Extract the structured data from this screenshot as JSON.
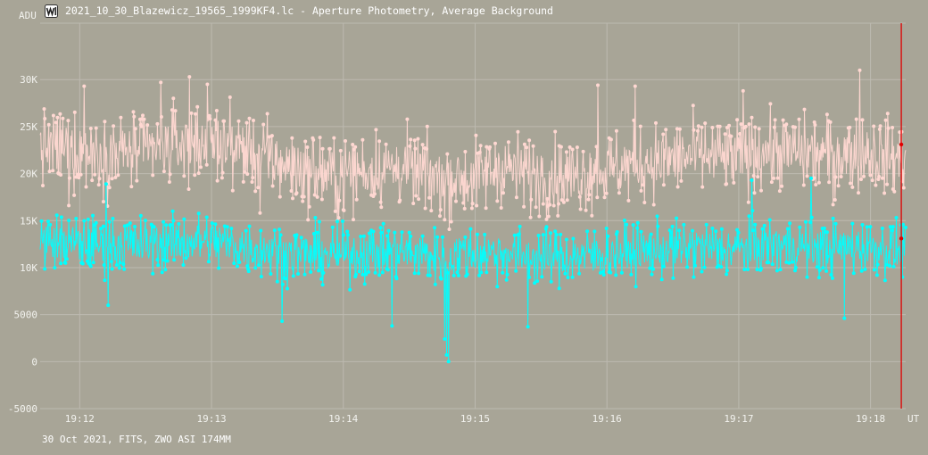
{
  "window": {
    "title": "2021_10_30_Blazewicz_19565_1999KF4.lc - Aperture Photometry, Average Background",
    "icon": "light-curve-app-icon"
  },
  "footer": {
    "caption": "30 Oct 2021, FITS, ZWO ASI 174MM"
  },
  "colors": {
    "background": "#a8a597",
    "grid": "#bdbab0",
    "text": "#f2f2ee",
    "cursor": "#e00000"
  },
  "chart_data": {
    "type": "line",
    "title": "",
    "ylabel": "ADU",
    "xlabel": "UT",
    "ylim": [
      -5000,
      36000
    ],
    "xlim": [
      "19:11:42",
      "19:18:16"
    ],
    "grid": true,
    "y_ticks": [
      {
        "value": -5000,
        "label": "-5000"
      },
      {
        "value": 0,
        "label": "0"
      },
      {
        "value": 5000,
        "label": "5000"
      },
      {
        "value": 10000,
        "label": "10K"
      },
      {
        "value": 15000,
        "label": "15K"
      },
      {
        "value": 20000,
        "label": "20K"
      },
      {
        "value": 25000,
        "label": "25K"
      },
      {
        "value": 30000,
        "label": "30K"
      }
    ],
    "x_ticks": [
      {
        "value": "19:12",
        "label": "19:12"
      },
      {
        "value": "19:13",
        "label": "19:13"
      },
      {
        "value": "19:14",
        "label": "19:14"
      },
      {
        "value": "19:15",
        "label": "19:15"
      },
      {
        "value": "19:16",
        "label": "19:16"
      },
      {
        "value": "19:17",
        "label": "19:17"
      },
      {
        "value": "19:18",
        "label": "19:18"
      }
    ],
    "cursor": {
      "x": "19:18:14",
      "values": [
        23100,
        13100
      ]
    },
    "series": [
      {
        "color": "#ffd8d2",
        "x": [
          "19:11:42",
          "19:11:57",
          "19:12:12",
          "19:12:27",
          "19:12:42",
          "19:12:57",
          "19:13:12",
          "19:13:27",
          "19:13:42",
          "19:13:57",
          "19:14:12",
          "19:14:27",
          "19:14:42",
          "19:14:57",
          "19:15:12",
          "19:15:27",
          "19:15:42",
          "19:15:57",
          "19:16:12",
          "19:16:27",
          "19:16:42",
          "19:16:57",
          "19:17:12",
          "19:17:27",
          "19:17:42",
          "19:17:57",
          "19:18:12",
          "19:18:16"
        ],
        "values": [
          22800,
          22600,
          22100,
          22400,
          23000,
          23600,
          22800,
          21500,
          20200,
          19900,
          20400,
          20600,
          19600,
          19300,
          20800,
          19800,
          19700,
          20300,
          21000,
          21500,
          22000,
          21600,
          22500,
          22300,
          22000,
          22400,
          21600,
          22100
        ],
        "spread": 2600,
        "peaks": [
          {
            "x": "19:12:02",
            "value": 29300
          },
          {
            "x": "19:12:37",
            "value": 29700
          },
          {
            "x": "19:12:50",
            "value": 30300
          },
          {
            "x": "19:12:58",
            "value": 29500
          },
          {
            "x": "19:15:56",
            "value": 29400
          },
          {
            "x": "19:16:13",
            "value": 29300
          },
          {
            "x": "19:17:02",
            "value": 28800
          },
          {
            "x": "19:17:55",
            "value": 31000
          },
          {
            "x": "19:11:55",
            "value": 16600
          },
          {
            "x": "19:13:22",
            "value": 15800
          },
          {
            "x": "19:13:58",
            "value": 15300
          },
          {
            "x": "19:14:46",
            "value": 15100
          },
          {
            "x": "19:17:43",
            "value": 16700
          }
        ]
      },
      {
        "color": "#00ffff",
        "x": [
          "19:11:42",
          "19:11:57",
          "19:12:12",
          "19:12:27",
          "19:12:42",
          "19:12:57",
          "19:13:12",
          "19:13:27",
          "19:13:42",
          "19:13:57",
          "19:14:12",
          "19:14:27",
          "19:14:42",
          "19:14:57",
          "19:15:12",
          "19:15:27",
          "19:15:42",
          "19:15:57",
          "19:16:12",
          "19:16:27",
          "19:16:42",
          "19:16:57",
          "19:17:12",
          "19:17:27",
          "19:17:42",
          "19:17:57",
          "19:18:12",
          "19:18:16"
        ],
        "values": [
          12800,
          12600,
          12400,
          12500,
          12700,
          12900,
          12300,
          11800,
          11400,
          11400,
          11600,
          11700,
          11200,
          11500,
          11500,
          11200,
          11100,
          11400,
          11700,
          11900,
          12100,
          11900,
          12400,
          12300,
          12000,
          12300,
          11900,
          12100
        ],
        "spread": 1900,
        "peaks": [
          {
            "x": "19:12:12",
            "value": 18900
          },
          {
            "x": "19:17:06",
            "value": 19300
          },
          {
            "x": "19:17:33",
            "value": 19500
          },
          {
            "x": "19:12:13",
            "value": 6000
          },
          {
            "x": "19:13:32",
            "value": 4300
          },
          {
            "x": "19:14:22",
            "value": 3800
          },
          {
            "x": "19:14:46",
            "value": 2400
          },
          {
            "x": "19:14:47",
            "value": 700
          },
          {
            "x": "19:14:48",
            "value": 0
          },
          {
            "x": "19:15:24",
            "value": 3700
          },
          {
            "x": "19:17:48",
            "value": 4600
          }
        ]
      }
    ]
  }
}
